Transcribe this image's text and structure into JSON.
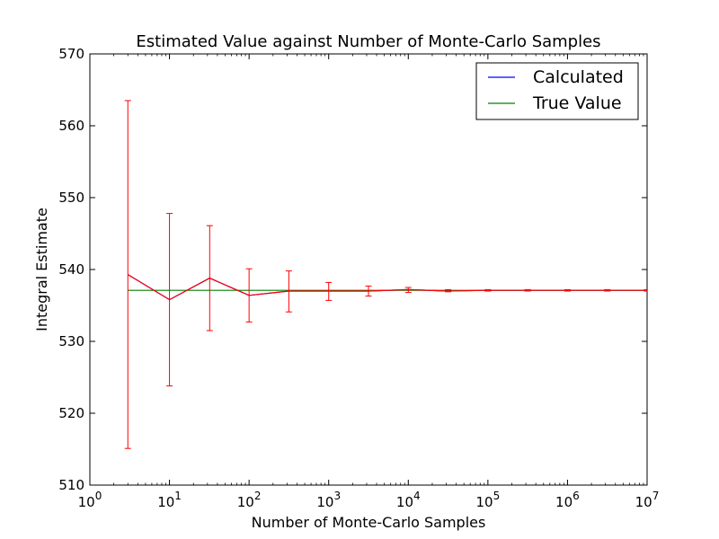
{
  "chart_data": {
    "type": "line",
    "title": "Estimated Value against Number of Monte-Carlo Samples",
    "xlabel": "Number of Monte-Carlo Samples",
    "ylabel": "Integral Estimate",
    "xscale": "log",
    "xlim": [
      1,
      10000000
    ],
    "ylim": [
      510,
      570
    ],
    "xticks": [
      {
        "value": 1,
        "base": "10",
        "exp": "0"
      },
      {
        "value": 10,
        "base": "10",
        "exp": "1"
      },
      {
        "value": 100,
        "base": "10",
        "exp": "2"
      },
      {
        "value": 1000,
        "base": "10",
        "exp": "3"
      },
      {
        "value": 10000,
        "base": "10",
        "exp": "4"
      },
      {
        "value": 100000,
        "base": "10",
        "exp": "5"
      },
      {
        "value": 1000000,
        "base": "10",
        "exp": "6"
      },
      {
        "value": 10000000,
        "base": "10",
        "exp": "7"
      }
    ],
    "yticks": [
      510,
      520,
      530,
      540,
      550,
      560,
      570
    ],
    "legend_position": "top-right",
    "grid": false,
    "series": [
      {
        "name": "Calculated",
        "color": "#0000ff",
        "x": [
          3,
          10,
          32,
          100,
          316,
          1000,
          3162,
          10000,
          31623,
          100000,
          316228,
          1000000,
          3162278,
          10000000
        ],
        "y": [
          539.3,
          535.8,
          538.8,
          536.4,
          537.0,
          537.0,
          537.0,
          537.2,
          537.0,
          537.1,
          537.1,
          537.1,
          537.1,
          537.1
        ]
      },
      {
        "name": "True Value",
        "color": "#008000",
        "x": [
          3,
          10000000
        ],
        "y": [
          537.1,
          537.1
        ]
      }
    ],
    "error_bars": {
      "color": "#ff0000",
      "x": [
        3,
        10,
        32,
        100,
        316,
        1000,
        3162,
        10000,
        31623,
        100000,
        316228,
        1000000,
        3162278,
        10000000
      ],
      "y": [
        539.3,
        535.8,
        538.8,
        536.4,
        537.0,
        537.0,
        537.0,
        537.2,
        537.0,
        537.1,
        537.1,
        537.1,
        537.1,
        537.1
      ],
      "low": [
        515.1,
        523.8,
        531.5,
        532.7,
        534.1,
        535.7,
        536.3,
        536.8,
        536.9,
        537.0,
        537.0,
        537.0,
        537.0,
        537.0
      ],
      "high": [
        563.5,
        547.8,
        546.1,
        540.1,
        539.8,
        538.2,
        537.7,
        537.5,
        537.2,
        537.2,
        537.2,
        537.2,
        537.2,
        537.2
      ]
    }
  }
}
